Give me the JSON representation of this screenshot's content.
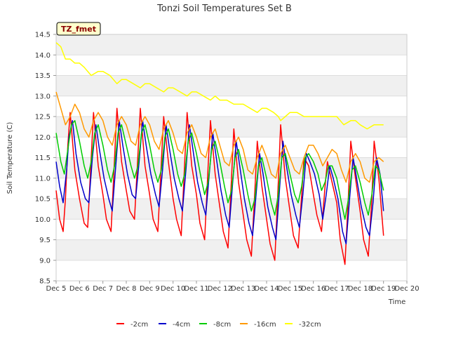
{
  "chart_data": {
    "type": "line",
    "title": "Tonzi Soil Temperatures Set B",
    "xlabel": "Time",
    "ylabel": "Soil Temperature (C)",
    "xlim": [
      5,
      20
    ],
    "ylim": [
      8.5,
      14.5
    ],
    "x_ticks": [
      5,
      6,
      7,
      8,
      9,
      10,
      11,
      12,
      13,
      14,
      15,
      16,
      17,
      18,
      19,
      20
    ],
    "x_tick_labels": [
      "Dec 5",
      "Dec 6",
      "Dec 7",
      "Dec 8",
      "Dec 9",
      "Dec 10",
      "Dec 11",
      "Dec 12",
      "Dec 13",
      "Dec 14",
      "Dec 15",
      "Dec 16",
      "Dec 17",
      "Dec 18",
      "Dec 19",
      "Dec 20"
    ],
    "y_ticks": [
      8.5,
      9.0,
      9.5,
      10.0,
      10.5,
      11.0,
      11.5,
      12.0,
      12.5,
      13.0,
      13.5,
      14.0,
      14.5
    ],
    "y_tick_labels": [
      "8.5",
      "9.0",
      "9.5",
      "10.0",
      "10.5",
      "11.0",
      "11.5",
      "12.0",
      "12.5",
      "13.0",
      "13.5",
      "14.0",
      "14.5"
    ],
    "grid": true,
    "legend_position": "bottom",
    "annotation": "TZ_fmet",
    "series": [
      {
        "name": "-2cm",
        "color": "#ff0000",
        "x": [
          5.0,
          5.15,
          5.3,
          5.4,
          5.5,
          5.6,
          5.8,
          6.0,
          6.2,
          6.35,
          6.5,
          6.6,
          6.8,
          7.0,
          7.15,
          7.35,
          7.5,
          7.6,
          7.8,
          8.0,
          8.15,
          8.35,
          8.5,
          8.6,
          8.8,
          9.0,
          9.15,
          9.35,
          9.5,
          9.6,
          9.8,
          10.0,
          10.15,
          10.35,
          10.5,
          10.6,
          10.8,
          11.0,
          11.15,
          11.35,
          11.5,
          11.6,
          11.8,
          12.0,
          12.15,
          12.35,
          12.5,
          12.6,
          12.8,
          13.0,
          13.15,
          13.35,
          13.5,
          13.6,
          13.8,
          14.0,
          14.15,
          14.35,
          14.5,
          14.6,
          14.8,
          15.0,
          15.15,
          15.35,
          15.5,
          15.6,
          15.8,
          16.0,
          16.15,
          16.35,
          16.5,
          16.6,
          16.8,
          17.0,
          17.15,
          17.35,
          17.5,
          17.6,
          17.8,
          18.0,
          18.15,
          18.35,
          18.5,
          18.6,
          18.8,
          19.0
        ],
        "values": [
          10.7,
          10.0,
          9.7,
          10.5,
          11.8,
          12.6,
          11.2,
          10.5,
          9.9,
          9.8,
          11.5,
          12.6,
          11.3,
          10.6,
          10.0,
          9.7,
          11.5,
          12.7,
          11.4,
          10.7,
          10.2,
          10.0,
          11.6,
          12.7,
          11.3,
          10.6,
          10.0,
          9.7,
          11.4,
          12.5,
          11.4,
          10.5,
          10.0,
          9.6,
          11.4,
          12.6,
          11.3,
          10.6,
          9.9,
          9.5,
          11.3,
          12.4,
          11.1,
          10.3,
          9.7,
          9.3,
          11.0,
          12.2,
          10.9,
          10.1,
          9.5,
          9.1,
          10.7,
          11.9,
          10.8,
          10.0,
          9.4,
          9.0,
          10.9,
          12.3,
          11.0,
          10.2,
          9.6,
          9.3,
          10.6,
          11.5,
          11.3,
          10.6,
          10.1,
          9.7,
          10.8,
          11.4,
          10.9,
          10.4,
          9.5,
          8.9,
          10.6,
          11.9,
          11.0,
          10.2,
          9.5,
          9.1,
          10.5,
          11.9,
          11.0,
          9.6
        ]
      },
      {
        "name": "-4cm",
        "color": "#0000cc",
        "x": [
          5.0,
          5.15,
          5.3,
          5.45,
          5.55,
          5.7,
          5.85,
          6.05,
          6.25,
          6.4,
          6.55,
          6.7,
          6.85,
          7.05,
          7.25,
          7.4,
          7.55,
          7.7,
          7.85,
          8.05,
          8.25,
          8.4,
          8.55,
          8.7,
          8.85,
          9.05,
          9.25,
          9.4,
          9.55,
          9.7,
          9.85,
          10.05,
          10.25,
          10.4,
          10.55,
          10.7,
          10.85,
          11.05,
          11.25,
          11.4,
          11.55,
          11.7,
          11.85,
          12.05,
          12.25,
          12.4,
          12.55,
          12.7,
          12.85,
          13.05,
          13.25,
          13.4,
          13.55,
          13.7,
          13.85,
          14.05,
          14.25,
          14.4,
          14.55,
          14.7,
          14.85,
          15.05,
          15.25,
          15.4,
          15.55,
          15.7,
          15.85,
          16.05,
          16.25,
          16.4,
          16.55,
          16.7,
          16.85,
          17.05,
          17.25,
          17.4,
          17.55,
          17.7,
          17.85,
          18.05,
          18.25,
          18.4,
          18.55,
          18.7,
          18.85,
          19.0
        ],
        "values": [
          11.4,
          10.8,
          10.4,
          11.2,
          12.0,
          12.4,
          11.6,
          10.9,
          10.5,
          10.4,
          11.5,
          12.3,
          11.7,
          11.0,
          10.5,
          10.2,
          11.3,
          12.4,
          11.8,
          11.1,
          10.6,
          10.5,
          11.4,
          12.4,
          11.8,
          11.1,
          10.6,
          10.3,
          11.2,
          12.3,
          11.7,
          11.0,
          10.5,
          10.2,
          11.2,
          12.3,
          11.7,
          10.9,
          10.4,
          10.1,
          11.1,
          12.1,
          11.5,
          10.7,
          10.1,
          9.8,
          10.9,
          11.9,
          11.3,
          10.5,
          9.9,
          9.6,
          10.6,
          11.6,
          11.1,
          10.3,
          9.8,
          9.5,
          10.7,
          11.9,
          11.3,
          10.6,
          10.1,
          9.8,
          10.6,
          11.6,
          11.4,
          11.1,
          10.6,
          10.0,
          10.6,
          11.3,
          11.0,
          10.5,
          9.7,
          9.4,
          10.5,
          11.5,
          11.0,
          10.3,
          9.8,
          9.6,
          10.4,
          11.5,
          11.1,
          10.2
        ]
      },
      {
        "name": "-8cm",
        "color": "#00cc00",
        "x": [
          5.0,
          5.2,
          5.35,
          5.5,
          5.65,
          5.8,
          6.0,
          6.2,
          6.35,
          6.5,
          6.65,
          6.8,
          7.0,
          7.2,
          7.35,
          7.5,
          7.65,
          7.8,
          8.0,
          8.2,
          8.35,
          8.5,
          8.65,
          8.8,
          9.0,
          9.2,
          9.35,
          9.5,
          9.65,
          9.8,
          10.0,
          10.2,
          10.35,
          10.5,
          10.65,
          10.8,
          11.0,
          11.2,
          11.35,
          11.5,
          11.65,
          11.8,
          12.0,
          12.2,
          12.35,
          12.5,
          12.65,
          12.8,
          13.0,
          13.2,
          13.35,
          13.5,
          13.65,
          13.8,
          14.0,
          14.2,
          14.35,
          14.5,
          14.65,
          14.8,
          15.0,
          15.2,
          15.35,
          15.5,
          15.65,
          15.8,
          16.0,
          16.2,
          16.35,
          16.5,
          16.65,
          16.8,
          17.0,
          17.2,
          17.35,
          17.5,
          17.65,
          17.8,
          18.0,
          18.2,
          18.35,
          18.5,
          18.65,
          18.8,
          19.0
        ],
        "values": [
          12.1,
          11.4,
          11.1,
          11.7,
          12.3,
          12.4,
          11.9,
          11.3,
          11.0,
          11.4,
          12.1,
          12.3,
          11.8,
          11.2,
          10.9,
          11.3,
          12.1,
          12.3,
          11.8,
          11.3,
          11.0,
          11.3,
          12.1,
          12.3,
          11.8,
          11.2,
          10.9,
          11.2,
          12.0,
          12.2,
          11.7,
          11.1,
          10.8,
          11.1,
          11.9,
          12.1,
          11.6,
          11.0,
          10.6,
          10.9,
          11.7,
          11.9,
          11.4,
          10.8,
          10.4,
          10.7,
          11.5,
          11.7,
          11.2,
          10.6,
          10.2,
          10.5,
          11.3,
          11.5,
          11.0,
          10.4,
          10.1,
          10.6,
          11.5,
          11.6,
          11.1,
          10.6,
          10.4,
          10.8,
          11.5,
          11.6,
          11.4,
          11.1,
          10.7,
          10.9,
          11.3,
          11.3,
          11.0,
          10.4,
          10.0,
          10.5,
          11.2,
          11.3,
          10.9,
          10.4,
          10.1,
          10.6,
          11.3,
          11.2,
          10.7
        ]
      },
      {
        "name": "-16cm",
        "color": "#ff9900",
        "x": [
          5.0,
          5.2,
          5.4,
          5.6,
          5.8,
          6.0,
          6.2,
          6.4,
          6.6,
          6.8,
          7.0,
          7.2,
          7.4,
          7.6,
          7.8,
          8.0,
          8.2,
          8.4,
          8.6,
          8.8,
          9.0,
          9.2,
          9.4,
          9.6,
          9.8,
          10.0,
          10.2,
          10.4,
          10.6,
          10.8,
          11.0,
          11.2,
          11.4,
          11.6,
          11.8,
          12.0,
          12.2,
          12.4,
          12.6,
          12.8,
          13.0,
          13.2,
          13.4,
          13.6,
          13.8,
          14.0,
          14.2,
          14.4,
          14.6,
          14.8,
          15.0,
          15.2,
          15.4,
          15.6,
          15.8,
          16.0,
          16.2,
          16.4,
          16.6,
          16.8,
          17.0,
          17.2,
          17.4,
          17.6,
          17.8,
          18.0,
          18.2,
          18.4,
          18.6,
          18.8,
          19.0
        ],
        "values": [
          13.1,
          12.7,
          12.3,
          12.5,
          12.8,
          12.6,
          12.2,
          12.0,
          12.4,
          12.6,
          12.4,
          12.0,
          11.8,
          12.3,
          12.5,
          12.3,
          11.9,
          11.8,
          12.3,
          12.5,
          12.3,
          11.9,
          11.7,
          12.2,
          12.4,
          12.1,
          11.7,
          11.6,
          12.1,
          12.3,
          12.0,
          11.6,
          11.5,
          12.0,
          12.2,
          11.8,
          11.4,
          11.3,
          11.8,
          12.0,
          11.7,
          11.2,
          11.1,
          11.5,
          11.8,
          11.5,
          11.1,
          11.0,
          11.6,
          11.8,
          11.5,
          11.2,
          11.1,
          11.5,
          11.8,
          11.8,
          11.6,
          11.3,
          11.5,
          11.7,
          11.6,
          11.2,
          10.9,
          11.4,
          11.6,
          11.4,
          11.0,
          10.9,
          11.4,
          11.5,
          11.4
        ]
      },
      {
        "name": "-32cm",
        "color": "#ffff00",
        "x": [
          5.0,
          5.2,
          5.4,
          5.6,
          5.8,
          6.0,
          6.2,
          6.5,
          6.8,
          7.0,
          7.3,
          7.6,
          7.8,
          8.0,
          8.3,
          8.6,
          8.8,
          9.0,
          9.3,
          9.6,
          9.8,
          10.0,
          10.3,
          10.6,
          10.8,
          11.0,
          11.3,
          11.6,
          11.8,
          12.0,
          12.3,
          12.6,
          12.8,
          13.0,
          13.3,
          13.6,
          13.8,
          14.0,
          14.3,
          14.5,
          14.6,
          14.8,
          15.0,
          15.3,
          15.6,
          15.8,
          16.0,
          16.3,
          16.6,
          16.8,
          17.0,
          17.3,
          17.6,
          17.8,
          18.0,
          18.3,
          18.6,
          18.8,
          19.0
        ],
        "values": [
          14.3,
          14.2,
          13.9,
          13.9,
          13.8,
          13.8,
          13.7,
          13.5,
          13.6,
          13.6,
          13.5,
          13.3,
          13.4,
          13.4,
          13.3,
          13.2,
          13.3,
          13.3,
          13.2,
          13.1,
          13.2,
          13.2,
          13.1,
          13.0,
          13.1,
          13.1,
          13.0,
          12.9,
          13.0,
          12.9,
          12.9,
          12.8,
          12.8,
          12.8,
          12.7,
          12.6,
          12.7,
          12.7,
          12.6,
          12.5,
          12.4,
          12.5,
          12.6,
          12.6,
          12.5,
          12.5,
          12.5,
          12.5,
          12.5,
          12.5,
          12.5,
          12.3,
          12.4,
          12.4,
          12.3,
          12.2,
          12.3,
          12.3,
          12.3
        ]
      }
    ]
  }
}
